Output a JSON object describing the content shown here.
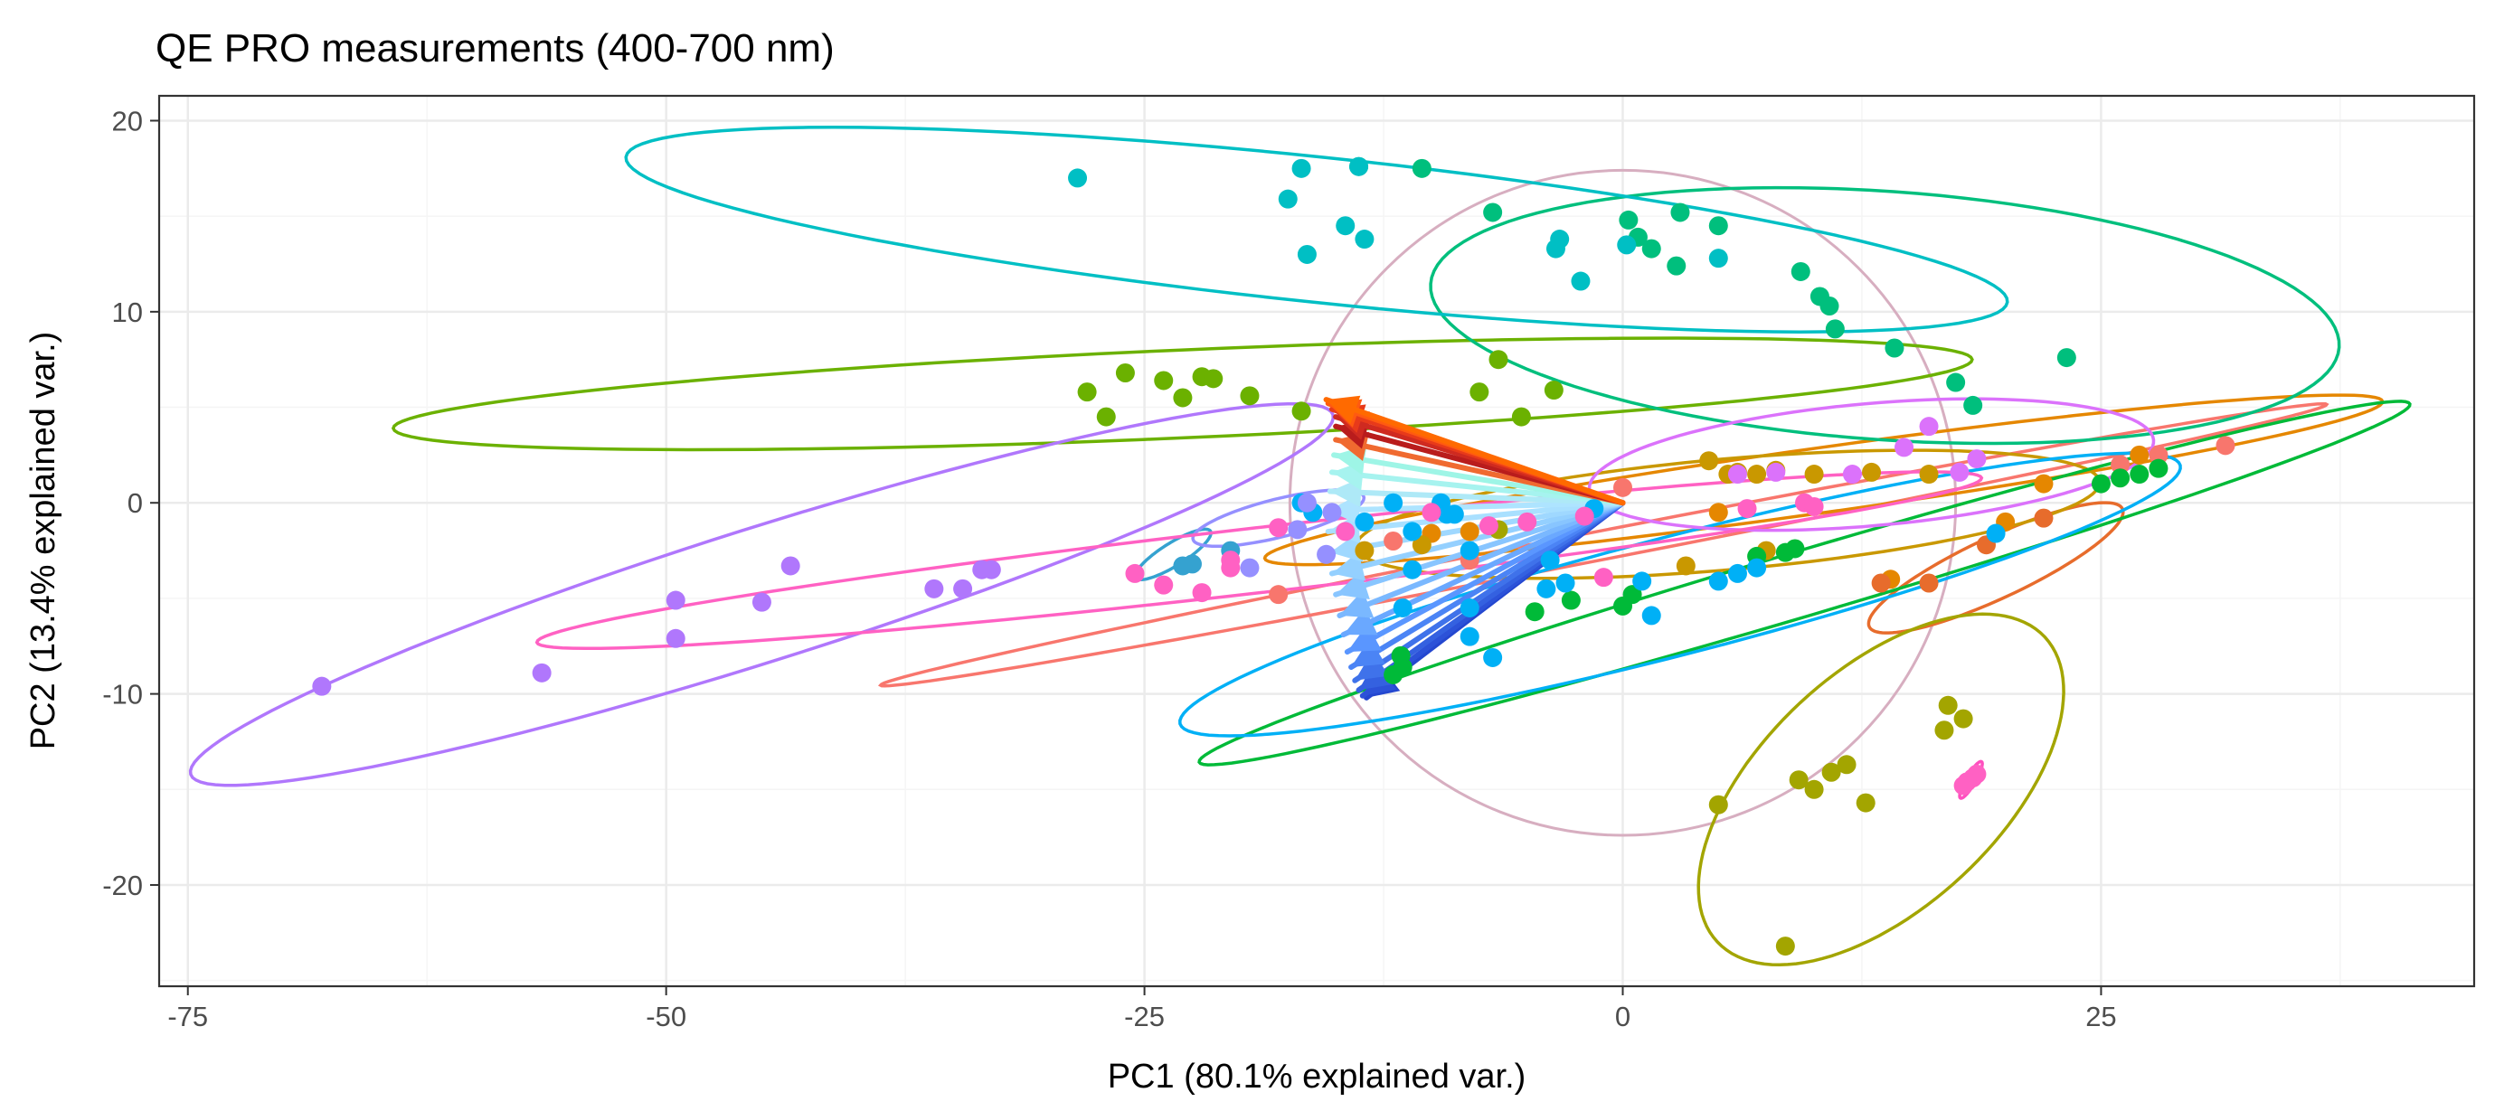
{
  "chart_data": {
    "type": "scatter",
    "title": "QE PRO measurements (400-700 nm)",
    "xlabel": "PC1 (80.1% explained var.)",
    "ylabel": "PC2 (13.4% explained var.)",
    "xlim": [
      -76.5,
      44.5
    ],
    "ylim": [
      -25.3,
      21.3
    ],
    "xticks": [
      -75,
      -50,
      -25,
      0,
      25
    ],
    "yticks": [
      -20,
      -10,
      0,
      10,
      20
    ],
    "grid": true,
    "legend": "none",
    "colors": {
      "background": "#ffffff",
      "panel_border": "#333333",
      "grid_major": "#ebebeb",
      "grid_minor": "#f5f5f5",
      "circle": "#d7aec0"
    },
    "correlation_circle": {
      "center": [
        0,
        0
      ],
      "radius": 17.4
    },
    "loading_arrows": {
      "origin": [
        0,
        0
      ],
      "tips": [
        [
          -15.5,
          5.4
        ],
        [
          -15.4,
          5.2
        ],
        [
          -15.2,
          4.9
        ],
        [
          -15.0,
          4.5
        ],
        [
          -15.0,
          4.0
        ],
        [
          -15.0,
          3.3
        ],
        [
          -15.1,
          2.5
        ],
        [
          -15.2,
          1.6
        ],
        [
          -15.3,
          0.6
        ],
        [
          -15.4,
          -0.4
        ],
        [
          -15.4,
          -1.5
        ],
        [
          -15.3,
          -2.6
        ],
        [
          -15.2,
          -3.7
        ],
        [
          -15.0,
          -4.8
        ],
        [
          -14.8,
          -5.9
        ],
        [
          -14.6,
          -6.9
        ],
        [
          -14.4,
          -7.8
        ],
        [
          -14.2,
          -8.6
        ],
        [
          -14.0,
          -9.3
        ],
        [
          -13.8,
          -9.8
        ],
        [
          -13.6,
          -10.1
        ],
        [
          -13.4,
          -10.2
        ]
      ],
      "colors": [
        "#ff6a00",
        "#ff5a10",
        "#e83a1a",
        "#cf2a20",
        "#b91c1c",
        "#f06a30",
        "#9ef5e6",
        "#a6f3ef",
        "#aee9f7",
        "#aee4ff",
        "#a9e0ff",
        "#9fd8ff",
        "#94d0ff",
        "#88c5ff",
        "#7ab8ff",
        "#6aa8ff",
        "#5a96ff",
        "#4b84f5",
        "#3f72ea",
        "#3461e0",
        "#2c52d8",
        "#2447cf"
      ]
    },
    "series": [
      {
        "color": "#f8766d",
        "points": [
          [
            -8,
            -3.0
          ],
          [
            -12,
            -2.0
          ],
          [
            0,
            0.8
          ],
          [
            26,
            2.0
          ],
          [
            31.5,
            3.0
          ],
          [
            28,
            2.5
          ],
          [
            -18,
            -4.8
          ]
        ],
        "ellipse": {
          "cx": -1,
          "cy": -2.2,
          "rx": 38.5,
          "ry": 0.75,
          "angle": 11.0
        }
      },
      {
        "color": "#e58700",
        "points": [
          [
            -8,
            -1.5
          ],
          [
            27,
            2.5
          ],
          [
            20,
            -1.0
          ],
          [
            -10,
            -1.6
          ],
          [
            5,
            -0.5
          ],
          [
            14,
            -4.0
          ],
          [
            22,
            1.0
          ]
        ],
        "ellipse": {
          "cx": 10.5,
          "cy": 1.2,
          "rx": 29.5,
          "ry": 1.7,
          "angle": 8.0
        }
      },
      {
        "color": "#e76c2c",
        "points": [
          [
            19,
            -2.2
          ],
          [
            16,
            -4.2
          ],
          [
            13.5,
            -4.2
          ],
          [
            22,
            -0.8
          ]
        ],
        "ellipse": {
          "cx": 19.5,
          "cy": -3.4,
          "rx": 7.3,
          "ry": 1.6,
          "angle": 25.0
        }
      },
      {
        "color": "#c99800",
        "points": [
          [
            6,
            1.6
          ],
          [
            5.5,
            1.5
          ],
          [
            4.5,
            2.2
          ],
          [
            8,
            1.7
          ],
          [
            -13.5,
            -2.5
          ],
          [
            -10.5,
            -2.2
          ],
          [
            7.5,
            -2.5
          ],
          [
            3.3,
            -3.3
          ],
          [
            13,
            1.6
          ],
          [
            7,
            1.5
          ],
          [
            10,
            1.5
          ],
          [
            16,
            1.5
          ]
        ],
        "ellipse": {
          "cx": 5.5,
          "cy": -0.6,
          "rx": 19.5,
          "ry": 2.9,
          "angle": 5.0
        }
      },
      {
        "color": "#a3a500",
        "points": [
          [
            17,
            -10.6
          ],
          [
            17.8,
            -11.3
          ],
          [
            16.8,
            -11.9
          ],
          [
            8.5,
            -23.2
          ],
          [
            9.2,
            -14.5
          ],
          [
            10,
            -15.0
          ],
          [
            10.9,
            -14.1
          ],
          [
            11.7,
            -13.7
          ],
          [
            12.7,
            -15.7
          ],
          [
            5,
            -15.8
          ],
          [
            -6.5,
            -1.4
          ]
        ],
        "ellipse": {
          "cx": 13.5,
          "cy": -15.0,
          "rx": 11.7,
          "ry": 6.2,
          "angle": 43.0
        }
      },
      {
        "color": "#6bb100",
        "points": [
          [
            -26,
            6.8
          ],
          [
            -28,
            5.8
          ],
          [
            -24,
            6.4
          ],
          [
            -22,
            6.6
          ],
          [
            -21.4,
            6.5
          ],
          [
            -23,
            5.5
          ],
          [
            -19.5,
            5.6
          ],
          [
            -27,
            4.5
          ],
          [
            -16.8,
            4.8
          ],
          [
            -7.5,
            5.8
          ],
          [
            -6.5,
            7.5
          ],
          [
            -5.3,
            4.5
          ],
          [
            -3.6,
            5.9
          ]
        ],
        "ellipse": {
          "cx": -23,
          "cy": 5.7,
          "rx": 41.3,
          "ry": 2.3,
          "angle": 2.5
        }
      },
      {
        "color": "#00ba38",
        "points": [
          [
            -11.5,
            -8.6
          ],
          [
            -11.6,
            -8.0
          ],
          [
            -12,
            -9.0
          ],
          [
            -4.6,
            -5.7
          ],
          [
            -2.7,
            -5.1
          ],
          [
            0,
            -5.4
          ],
          [
            0.5,
            -4.8
          ],
          [
            8.5,
            -2.6
          ],
          [
            7,
            -2.8
          ],
          [
            9,
            -2.4
          ],
          [
            25,
            1.0
          ],
          [
            26,
            1.3
          ],
          [
            27,
            1.5
          ],
          [
            28,
            1.8
          ]
        ],
        "ellipse": {
          "cx": 9.5,
          "cy": -4.2,
          "rx": 33.0,
          "ry": 1.7,
          "angle": 16.5
        }
      },
      {
        "color": "#00bf7d",
        "points": [
          [
            -13.8,
            17.6
          ],
          [
            -10.5,
            17.5
          ],
          [
            -6.8,
            15.2
          ],
          [
            0.3,
            14.8
          ],
          [
            3,
            15.2
          ],
          [
            5,
            14.5
          ],
          [
            0.8,
            13.9
          ],
          [
            1.5,
            13.3
          ],
          [
            2.8,
            12.4
          ],
          [
            9.3,
            12.1
          ],
          [
            11.1,
            9.1
          ],
          [
            14.2,
            8.1
          ],
          [
            17.4,
            6.3
          ],
          [
            18.3,
            5.1
          ],
          [
            23.2,
            7.6
          ],
          [
            10.3,
            10.8
          ],
          [
            10.8,
            10.3
          ]
        ],
        "ellipse": {
          "cx": 13.7,
          "cy": 9.8,
          "rx": 23.8,
          "ry": 6.5,
          "angle": -4.0
        }
      },
      {
        "color": "#00bfc4",
        "points": [
          [
            -28.5,
            17.0
          ],
          [
            -16.8,
            17.5
          ],
          [
            -17.5,
            15.9
          ],
          [
            -16.5,
            13.0
          ],
          [
            -14.5,
            14.5
          ],
          [
            -13.5,
            13.8
          ],
          [
            -3.5,
            13.3
          ],
          [
            -3.3,
            13.8
          ],
          [
            -2.2,
            11.6
          ],
          [
            0.2,
            13.5
          ],
          [
            5,
            12.8
          ],
          [
            -13.8,
            17.6
          ]
        ],
        "ellipse": {
          "cx": -16,
          "cy": 14.3,
          "rx": 36.3,
          "ry": 3.8,
          "angle": -6.0
        }
      },
      {
        "color": "#00b0f6",
        "points": [
          [
            -12,
            0.0
          ],
          [
            -9.5,
            0.0
          ],
          [
            -8.8,
            -0.6
          ],
          [
            -9.2,
            -0.6
          ],
          [
            -13.5,
            -1.0
          ],
          [
            -11,
            -1.5
          ],
          [
            -11,
            -3.5
          ],
          [
            -8,
            -2.5
          ],
          [
            -16.8,
            0.0
          ],
          [
            -16.2,
            -0.5
          ],
          [
            -11.5,
            -5.5
          ],
          [
            -8,
            -5.5
          ],
          [
            -6.8,
            -8.1
          ],
          [
            -4,
            -4.5
          ],
          [
            -3,
            -4.2
          ],
          [
            1,
            -4.1
          ],
          [
            1.5,
            -5.9
          ],
          [
            5,
            -4.1
          ],
          [
            6,
            -3.7
          ],
          [
            7,
            -3.4
          ],
          [
            19.5,
            -1.6
          ],
          [
            -8,
            -7.0
          ],
          [
            -3.8,
            -3.0
          ],
          [
            -1.5,
            -0.3
          ]
        ],
        "ellipse": {
          "cx": 3.0,
          "cy": -4.8,
          "rx": 27.0,
          "ry": 3.1,
          "angle": 14.5
        }
      },
      {
        "color": "#35a2d0",
        "points": [
          [
            -22.5,
            -3.2
          ],
          [
            -23,
            -3.3
          ],
          [
            -20.5,
            -2.5
          ]
        ],
        "ellipse": {
          "cx": -23.5,
          "cy": -2.7,
          "rx": 2.3,
          "ry": 0.6,
          "angle": 32.0
        }
      },
      {
        "color": "#9590ff",
        "points": [
          [
            -16.5,
            0.0
          ],
          [
            -15.2,
            -0.5
          ],
          [
            -17,
            -1.4
          ],
          [
            -19.5,
            -3.4
          ],
          [
            -15.5,
            -2.7
          ]
        ],
        "ellipse": {
          "cx": -18.0,
          "cy": -0.8,
          "rx": 4.6,
          "ry": 1.0,
          "angle": 14.0
        }
      },
      {
        "color": "#b077fc",
        "points": [
          [
            -68,
            -9.6
          ],
          [
            -56.5,
            -8.9
          ],
          [
            -49.5,
            -5.1
          ],
          [
            -49.5,
            -7.1
          ],
          [
            -45,
            -5.2
          ],
          [
            -43.5,
            -3.3
          ],
          [
            -36,
            -4.5
          ],
          [
            -34.5,
            -4.5
          ],
          [
            -33.5,
            -3.5
          ],
          [
            -33,
            -3.5
          ]
        ],
        "ellipse": {
          "cx": -45,
          "cy": -4.8,
          "rx": 31.3,
          "ry": 3.5,
          "angle": 17.5
        }
      },
      {
        "color": "#db72fb",
        "points": [
          [
            14.7,
            2.9
          ],
          [
            16,
            4.0
          ],
          [
            18.5,
            2.3
          ],
          [
            17.6,
            1.6
          ],
          [
            12,
            1.5
          ],
          [
            8,
            1.6
          ],
          [
            6,
            1.5
          ]
        ],
        "ellipse": {
          "cx": 13,
          "cy": 2.0,
          "rx": 14.8,
          "ry": 3.2,
          "angle": 5.0
        }
      },
      {
        "color": "#ff61c3",
        "points": [
          [
            -25.5,
            -3.7
          ],
          [
            -24,
            -4.3
          ],
          [
            -22,
            -4.7
          ],
          [
            -20.5,
            -3.0
          ],
          [
            -20.5,
            -3.4
          ],
          [
            -18,
            -1.3
          ],
          [
            -14.5,
            -1.5
          ],
          [
            -10,
            -0.5
          ],
          [
            -7,
            -1.2
          ],
          [
            -5,
            -1.0
          ],
          [
            -2,
            -0.7
          ],
          [
            -1,
            -3.9
          ],
          [
            6.5,
            -0.3
          ],
          [
            9.5,
            0.0
          ],
          [
            10,
            -0.2
          ],
          [
            18.3,
            -14.4
          ],
          [
            18.5,
            -14.2
          ],
          [
            18,
            -14.6
          ],
          [
            17.8,
            -14.8
          ]
        ],
        "ellipse": {
          "cx": -19,
          "cy": -3.0,
          "rx": 38.0,
          "ry": 1.7,
          "angle": 6.5
        }
      },
      {
        "color": "#ff4fbf",
        "points": [],
        "ellipse": {
          "cx": 18.2,
          "cy": -14.5,
          "rx": 1.1,
          "ry": 0.25,
          "angle": 60.0
        }
      }
    ]
  }
}
